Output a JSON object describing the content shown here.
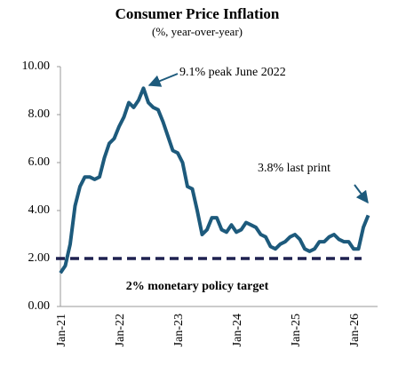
{
  "chart_data": {
    "type": "line",
    "title": "Consumer Price Inflation",
    "subtitle": "(%, year-over-year)",
    "categories": [
      "Jan-21",
      null,
      null,
      null,
      null,
      null,
      null,
      null,
      null,
      null,
      null,
      null,
      "Jan-22",
      null,
      null,
      null,
      null,
      null,
      null,
      null,
      null,
      null,
      null,
      null,
      "Jan-23",
      null,
      null,
      null,
      null,
      null,
      null,
      null,
      null,
      null,
      null,
      null,
      "Jan-24",
      null,
      null,
      null,
      null,
      null,
      null,
      null,
      null,
      null,
      null,
      null,
      "Jan-25",
      null,
      null,
      null,
      null,
      null,
      null,
      null,
      null,
      null,
      null,
      null,
      "Jan-26",
      null,
      null,
      null
    ],
    "values": [
      1.4,
      1.7,
      2.6,
      4.2,
      5.0,
      5.4,
      5.4,
      5.3,
      5.4,
      6.2,
      6.8,
      7.0,
      7.5,
      7.9,
      8.5,
      8.3,
      8.6,
      9.1,
      8.5,
      8.3,
      8.2,
      7.7,
      7.1,
      6.5,
      6.4,
      6.0,
      5.0,
      4.9,
      4.0,
      3.0,
      3.2,
      3.7,
      3.7,
      3.2,
      3.1,
      3.4,
      3.1,
      3.2,
      3.5,
      3.4,
      3.3,
      3.0,
      2.9,
      2.5,
      2.4,
      2.6,
      2.7,
      2.9,
      3.0,
      2.8,
      2.4,
      2.3,
      2.4,
      2.7,
      2.7,
      2.9,
      3.0,
      2.8,
      2.7,
      2.7,
      2.4,
      2.4,
      3.3,
      3.8
    ],
    "color": "#1d5a7c",
    "ylim": [
      0,
      10
    ],
    "yticks": [
      {
        "value": 0,
        "label": "0.00"
      },
      {
        "value": 2,
        "label": "2.00"
      },
      {
        "value": 4,
        "label": "4.00"
      },
      {
        "value": 6,
        "label": "6.00"
      },
      {
        "value": 8,
        "label": "8.00"
      },
      {
        "value": 10,
        "label": "10.00"
      }
    ],
    "reference_line": {
      "value": 2,
      "label": "2% monetary policy target",
      "color": "#1f2150"
    },
    "annotations": [
      {
        "text": "9.1% peak June 2022"
      },
      {
        "text": "3.8% last print"
      }
    ]
  }
}
